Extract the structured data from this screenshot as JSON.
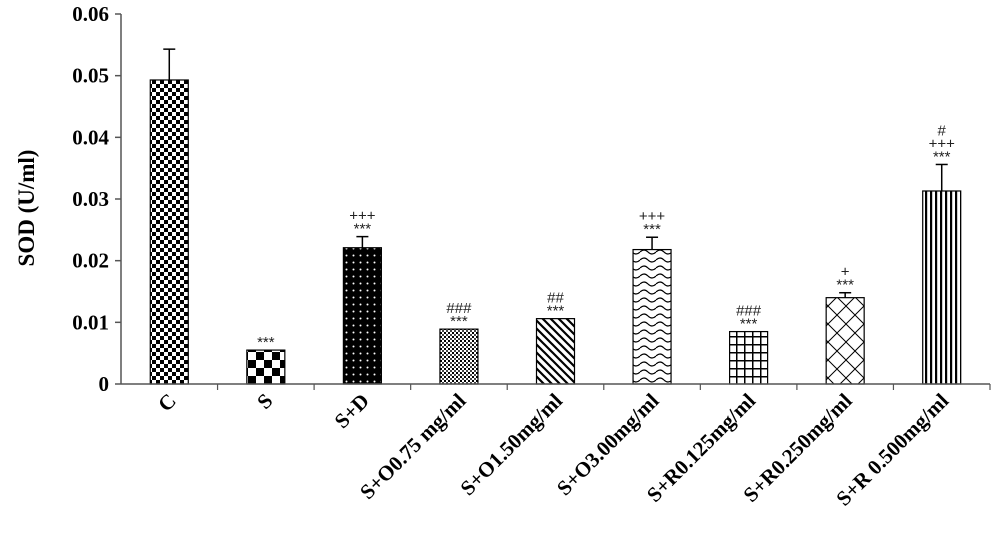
{
  "chart_data": {
    "type": "bar",
    "title": "",
    "xlabel": "",
    "ylabel": "SOD (U/ml)",
    "ylim": [
      0,
      0.06
    ],
    "yticks": [
      0,
      0.01,
      0.02,
      0.03,
      0.04,
      0.05,
      0.06
    ],
    "ytick_labels": [
      "0",
      "0.01",
      "0.02",
      "0.03",
      "0.04",
      "0.05",
      "0.06"
    ],
    "grid": false,
    "legend": "none",
    "categories": [
      "C",
      "S",
      "S+D",
      "S+O0.75 mg/ml",
      "S+O1.50mg/ml",
      "S+O3.00mg/ml",
      "S+R0.125mg/ml",
      "S+R0.250mg/ml",
      "S+R 0.500mg/ml"
    ],
    "values": [
      0.0493,
      0.0055,
      0.0221,
      0.0089,
      0.0106,
      0.0218,
      0.0085,
      0.014,
      0.0313
    ],
    "errors": [
      0.005,
      0.0,
      0.0018,
      0.0,
      0.0,
      0.002,
      0.0,
      0.0008,
      0.0043
    ],
    "significance": [
      [],
      [
        "***"
      ],
      [
        "+++",
        "***"
      ],
      [
        "###",
        "***"
      ],
      [
        "##",
        "***"
      ],
      [
        "+++",
        "***"
      ],
      [
        "###",
        "***"
      ],
      [
        "+",
        "***"
      ],
      [
        "#",
        "+++",
        "***"
      ]
    ],
    "patterns": [
      "checker-fine",
      "checker-large",
      "dots-on-black",
      "dense-grid",
      "diagonal-lines",
      "wavy-lines",
      "grid-lines",
      "diamond-lattice",
      "vertical-lines"
    ]
  }
}
